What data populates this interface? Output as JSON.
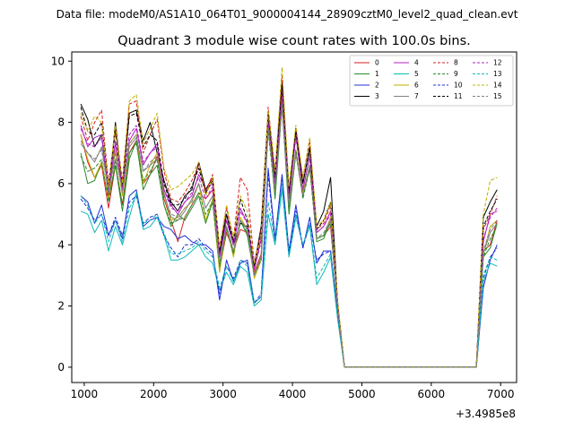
{
  "chart_data": {
    "type": "line",
    "suptitle": "Data file: modeM0/AS1A10_064T01_9000004144_28909cztM0_level2_quad_clean.evt",
    "title": "Quadrant 3 module wise count rates with 100.0s bins.",
    "xlabel": "",
    "ylabel": "",
    "x_offset_label": "+3.4985e8",
    "xlim": [
      820,
      7230
    ],
    "ylim": [
      -0.5,
      10.3
    ],
    "xticks": [
      1000,
      2000,
      3000,
      4000,
      5000,
      6000,
      7000
    ],
    "yticks": [
      0,
      2,
      4,
      6,
      8,
      10
    ],
    "x": [
      950,
      1050,
      1150,
      1250,
      1350,
      1450,
      1550,
      1650,
      1750,
      1850,
      1950,
      2050,
      2150,
      2250,
      2350,
      2450,
      2550,
      2650,
      2750,
      2850,
      2950,
      3050,
      3150,
      3250,
      3350,
      3450,
      3550,
      3650,
      3750,
      3850,
      3950,
      4050,
      4150,
      4250,
      4350,
      4450,
      4550,
      4650,
      4750,
      6650,
      6750,
      6850,
      6950
    ],
    "series": [
      {
        "name": "0",
        "color": "#d62020",
        "dash": false,
        "values": [
          7.6,
          6.7,
          6.2,
          6.6,
          5.2,
          6.6,
          5.3,
          7.0,
          7.4,
          6.0,
          6.3,
          6.9,
          5.5,
          4.8,
          4.1,
          4.9,
          5.3,
          5.7,
          5.5,
          5.8,
          3.2,
          4.4,
          3.8,
          4.5,
          4.4,
          3.1,
          3.7,
          8.0,
          5.8,
          8.7,
          5.2,
          7.0,
          5.6,
          6.5,
          4.2,
          4.3,
          4.6,
          2.0,
          0,
          0,
          3.8,
          4.0,
          4.8
        ]
      },
      {
        "name": "1",
        "color": "#2a8a2a",
        "dash": false,
        "values": [
          7.0,
          6.0,
          6.1,
          6.7,
          5.5,
          6.6,
          5.1,
          6.8,
          7.4,
          5.8,
          6.3,
          6.6,
          5.3,
          4.6,
          5.0,
          4.8,
          5.2,
          5.6,
          4.7,
          5.4,
          3.2,
          4.6,
          3.7,
          4.8,
          4.3,
          3.0,
          3.6,
          8.1,
          5.5,
          8.6,
          5.0,
          7.0,
          5.6,
          6.6,
          4.1,
          4.2,
          4.8,
          1.8,
          0,
          0,
          3.6,
          3.9,
          4.7
        ]
      },
      {
        "name": "2",
        "color": "#1f2fd6",
        "dash": false,
        "values": [
          5.6,
          5.4,
          4.7,
          5.3,
          4.3,
          4.8,
          4.2,
          5.6,
          5.8,
          4.6,
          4.8,
          4.9,
          4.6,
          4.5,
          4.2,
          4.3,
          4.1,
          4.0,
          4.0,
          3.8,
          2.2,
          3.5,
          2.8,
          3.4,
          3.5,
          2.1,
          2.3,
          6.5,
          4.2,
          6.3,
          3.8,
          5.3,
          3.9,
          4.9,
          3.4,
          3.8,
          3.8,
          1.7,
          0,
          0,
          2.6,
          3.5,
          4.0
        ]
      },
      {
        "name": "3",
        "color": "#000000",
        "dash": false,
        "values": [
          8.6,
          8.1,
          7.2,
          7.6,
          5.6,
          8.0,
          5.9,
          8.3,
          8.4,
          7.4,
          8.0,
          7.0,
          6.1,
          5.4,
          5.1,
          5.6,
          5.8,
          6.7,
          5.8,
          6.2,
          3.7,
          5.0,
          4.0,
          4.7,
          4.6,
          3.3,
          4.6,
          8.3,
          6.3,
          9.3,
          5.7,
          7.8,
          6.0,
          7.2,
          4.6,
          5.1,
          6.2,
          2.1,
          0,
          0,
          4.9,
          5.4,
          5.8
        ]
      },
      {
        "name": "4",
        "color": "#b020c0",
        "dash": false,
        "values": [
          7.9,
          7.2,
          7.5,
          7.6,
          5.7,
          7.3,
          5.8,
          7.4,
          7.8,
          6.6,
          7.0,
          7.3,
          5.8,
          5.3,
          5.0,
          5.4,
          5.6,
          6.3,
          5.8,
          6.0,
          3.6,
          4.8,
          4.0,
          5.2,
          4.7,
          3.2,
          4.2,
          8.1,
          6.1,
          9.0,
          5.5,
          7.6,
          5.8,
          6.9,
          4.4,
          4.6,
          5.1,
          2.0,
          0,
          0,
          4.1,
          5.0,
          5.1
        ]
      },
      {
        "name": "5",
        "color": "#10b8b8",
        "dash": false,
        "values": [
          5.1,
          5.0,
          4.4,
          4.8,
          3.8,
          4.6,
          4.0,
          4.9,
          5.7,
          4.5,
          4.6,
          4.9,
          4.3,
          3.5,
          3.5,
          3.6,
          3.8,
          4.0,
          3.6,
          3.4,
          2.5,
          3.1,
          2.7,
          3.3,
          3.1,
          2.0,
          2.2,
          5.0,
          4.0,
          5.8,
          3.6,
          4.9,
          4.0,
          4.6,
          2.7,
          3.1,
          3.6,
          1.6,
          0,
          0,
          2.8,
          3.4,
          3.3
        ]
      },
      {
        "name": "6",
        "color": "#c0b000",
        "dash": false,
        "values": [
          7.6,
          6.8,
          6.2,
          6.7,
          5.5,
          7.1,
          5.6,
          7.3,
          7.6,
          6.0,
          6.6,
          7.0,
          5.7,
          4.8,
          4.9,
          5.2,
          5.4,
          6.0,
          4.8,
          5.5,
          3.1,
          4.6,
          3.6,
          4.9,
          4.5,
          2.9,
          3.5,
          8.2,
          5.7,
          8.9,
          5.3,
          7.1,
          5.7,
          6.6,
          4.2,
          4.3,
          4.9,
          1.9,
          0,
          0,
          3.7,
          4.6,
          4.8
        ]
      },
      {
        "name": "7",
        "color": "#808080",
        "dash": false,
        "values": [
          7.3,
          7.0,
          6.7,
          7.2,
          5.8,
          6.8,
          5.9,
          7.2,
          7.5,
          6.4,
          6.6,
          6.8,
          5.7,
          4.9,
          4.8,
          5.1,
          5.5,
          6.0,
          5.2,
          5.6,
          3.4,
          4.6,
          3.8,
          4.8,
          4.5,
          3.0,
          3.6,
          7.8,
          5.8,
          8.5,
          5.2,
          7.0,
          5.6,
          6.6,
          4.2,
          4.3,
          4.8,
          1.9,
          0,
          0,
          3.7,
          4.4,
          4.7
        ]
      },
      {
        "name": "8",
        "color": "#d62020",
        "dash": true,
        "values": [
          8.2,
          7.4,
          8.0,
          8.4,
          6.0,
          7.8,
          6.1,
          8.6,
          8.7,
          7.0,
          7.6,
          8.1,
          6.4,
          5.5,
          5.4,
          5.7,
          6.1,
          6.6,
          5.7,
          6.3,
          3.9,
          5.2,
          4.2,
          6.2,
          5.8,
          3.4,
          4.5,
          8.5,
          6.4,
          9.5,
          5.8,
          7.8,
          6.2,
          7.4,
          4.5,
          4.7,
          5.3,
          2.1,
          0,
          0,
          4.5,
          5.0,
          5.6
        ]
      },
      {
        "name": "9",
        "color": "#2a8a2a",
        "dash": true,
        "values": [
          6.9,
          6.4,
          6.5,
          6.8,
          5.4,
          6.7,
          5.3,
          7.0,
          7.3,
          6.1,
          6.4,
          6.8,
          5.3,
          4.7,
          4.8,
          4.9,
          5.3,
          5.7,
          5.0,
          5.4,
          3.3,
          4.5,
          3.7,
          4.8,
          4.4,
          3.0,
          3.5,
          7.7,
          5.6,
          8.6,
          5.1,
          7.1,
          5.5,
          6.5,
          4.2,
          4.3,
          4.7,
          1.9,
          0,
          0,
          3.6,
          4.2,
          4.6
        ]
      },
      {
        "name": "10",
        "color": "#1f2fd6",
        "dash": true,
        "values": [
          5.5,
          5.2,
          4.8,
          5.0,
          4.3,
          4.9,
          4.3,
          5.4,
          5.6,
          4.7,
          4.9,
          5.0,
          4.3,
          3.9,
          3.6,
          4.0,
          4.0,
          4.2,
          3.9,
          3.7,
          2.4,
          3.3,
          2.9,
          3.5,
          3.4,
          2.1,
          2.4,
          6.3,
          4.1,
          6.2,
          3.7,
          5.1,
          3.9,
          4.7,
          3.5,
          3.7,
          3.8,
          1.7,
          0,
          0,
          2.9,
          3.6,
          3.9
        ]
      },
      {
        "name": "11",
        "color": "#000000",
        "dash": true,
        "values": [
          8.5,
          7.7,
          7.6,
          8.0,
          5.9,
          7.7,
          5.9,
          8.2,
          8.3,
          7.2,
          7.6,
          7.4,
          6.0,
          5.3,
          5.3,
          5.5,
          5.9,
          6.5,
          5.7,
          6.1,
          3.8,
          5.0,
          4.1,
          5.5,
          4.8,
          3.3,
          4.4,
          8.2,
          6.2,
          9.2,
          5.7,
          7.7,
          6.0,
          7.1,
          4.5,
          4.8,
          5.4,
          2.1,
          0,
          0,
          4.6,
          5.1,
          5.5
        ]
      },
      {
        "name": "12",
        "color": "#b020c0",
        "dash": true,
        "values": [
          7.8,
          7.3,
          7.2,
          7.5,
          5.8,
          7.4,
          5.8,
          7.6,
          7.9,
          6.7,
          7.0,
          7.2,
          5.8,
          5.2,
          5.1,
          5.4,
          5.7,
          6.2,
          5.5,
          5.9,
          3.6,
          4.8,
          4.0,
          5.1,
          4.7,
          3.2,
          4.1,
          8.0,
          6.0,
          8.9,
          5.5,
          7.5,
          5.8,
          6.9,
          4.4,
          4.6,
          5.0,
          2.0,
          0,
          0,
          4.2,
          4.9,
          5.2
        ]
      },
      {
        "name": "13",
        "color": "#10b8b8",
        "dash": true,
        "values": [
          5.6,
          5.3,
          4.7,
          5.0,
          4.1,
          4.8,
          4.1,
          5.2,
          5.6,
          4.7,
          4.8,
          5.0,
          4.4,
          3.7,
          3.7,
          3.8,
          3.9,
          4.1,
          3.8,
          3.6,
          2.6,
          3.3,
          2.8,
          3.5,
          3.3,
          2.1,
          2.3,
          5.4,
          4.1,
          6.0,
          3.7,
          5.0,
          4.0,
          4.7,
          2.9,
          3.3,
          3.7,
          1.6,
          0,
          0,
          3.0,
          3.6,
          3.5
        ]
      },
      {
        "name": "14",
        "color": "#c0b000",
        "dash": true,
        "values": [
          8.3,
          7.7,
          8.2,
          8.0,
          5.9,
          7.9,
          6.0,
          8.7,
          8.9,
          7.3,
          7.8,
          8.3,
          6.5,
          5.8,
          5.9,
          6.1,
          6.3,
          6.7,
          5.6,
          6.2,
          3.9,
          5.3,
          4.2,
          5.6,
          5.1,
          3.4,
          4.3,
          8.4,
          6.4,
          9.8,
          5.9,
          7.9,
          6.2,
          7.5,
          4.6,
          4.8,
          5.4,
          2.2,
          0,
          0,
          5.0,
          6.1,
          6.2
        ]
      },
      {
        "name": "15",
        "color": "#808080",
        "dash": true,
        "values": [
          7.4,
          7.0,
          6.8,
          7.1,
          5.7,
          7.0,
          5.7,
          7.3,
          7.6,
          6.4,
          6.7,
          6.9,
          5.6,
          5.0,
          4.9,
          5.2,
          5.4,
          6.0,
          5.2,
          5.6,
          3.4,
          4.6,
          3.8,
          4.8,
          4.5,
          3.0,
          3.6,
          7.8,
          5.8,
          8.6,
          5.3,
          7.0,
          5.6,
          6.6,
          4.2,
          4.4,
          4.8,
          1.9,
          0,
          0,
          3.8,
          4.5,
          4.8
        ]
      }
    ]
  }
}
